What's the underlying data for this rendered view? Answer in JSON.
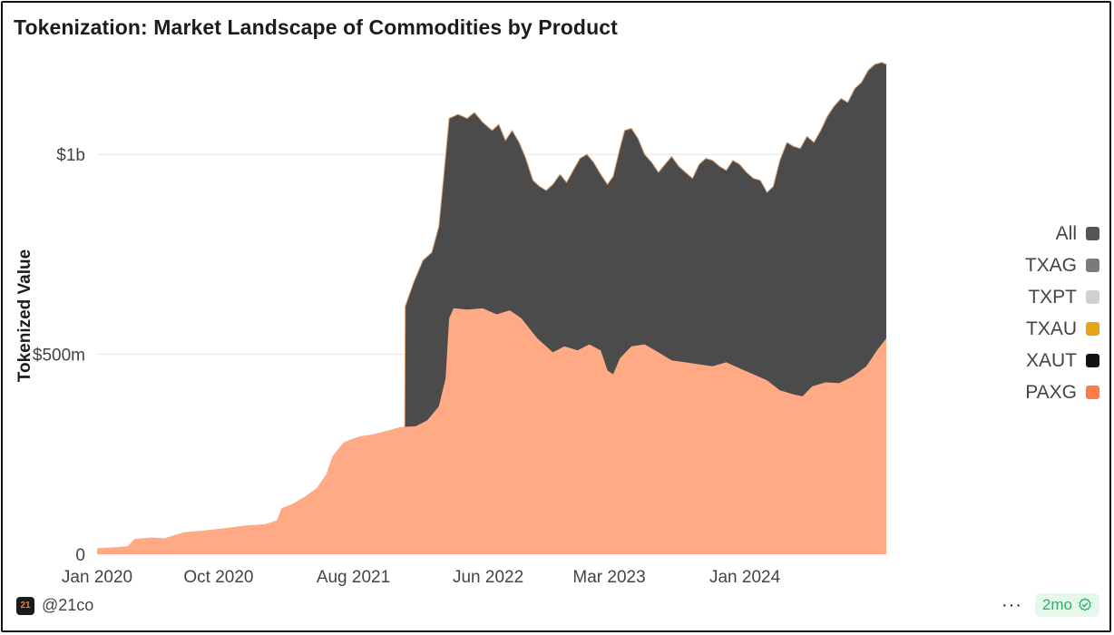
{
  "title": "Tokenization: Market Landscape of Commodities by Product",
  "footer": {
    "handle": "@21co",
    "logo_text": "21",
    "more_icon": "···",
    "age_badge": "2mo"
  },
  "colors": {
    "paxg": "#FFA985",
    "all": "#4B4B4B",
    "gridline": "#E6E6E6",
    "axis_text": "#444444"
  },
  "chart_data": {
    "type": "area",
    "ylabel": "Tokenized Value",
    "xlabel": "",
    "ylim": [
      0,
      1250
    ],
    "y_unit": "millions USD",
    "y_ticks": [
      {
        "value": 0,
        "label": "0"
      },
      {
        "value": 500,
        "label": "$500m"
      },
      {
        "value": 1000,
        "label": "$1b"
      }
    ],
    "x_ticks": [
      {
        "date": "2020-01-01",
        "label": "Jan 2020"
      },
      {
        "date": "2020-10-01",
        "label": "Oct 2020"
      },
      {
        "date": "2021-08-01",
        "label": "Aug 2021"
      },
      {
        "date": "2022-06-01",
        "label": "Jun 2022"
      },
      {
        "date": "2023-03-01",
        "label": "Mar 2023"
      },
      {
        "date": "2024-01-01",
        "label": "Jan 2024"
      }
    ],
    "x_range": [
      "2020-01-01",
      "2024-11-15"
    ],
    "grid": true,
    "legend_position": "right",
    "legend": [
      {
        "name": "All",
        "color": "#555555"
      },
      {
        "name": "TXAG",
        "color": "#7A7A7A"
      },
      {
        "name": "TXPT",
        "color": "#D0D0D0"
      },
      {
        "name": "TXAU",
        "color": "#E8A317"
      },
      {
        "name": "XAUT",
        "color": "#111111"
      },
      {
        "name": "PAXG",
        "color": "#FF7A45"
      }
    ],
    "series": [
      {
        "name": "PAXG",
        "color": "#FFA985",
        "points": [
          [
            "2020-01-01",
            15
          ],
          [
            "2020-02-15",
            18
          ],
          [
            "2020-03-10",
            20
          ],
          [
            "2020-03-25",
            38
          ],
          [
            "2020-05-01",
            42
          ],
          [
            "2020-06-01",
            40
          ],
          [
            "2020-07-15",
            55
          ],
          [
            "2020-09-01",
            60
          ],
          [
            "2020-10-15",
            65
          ],
          [
            "2020-12-01",
            72
          ],
          [
            "2021-01-15",
            75
          ],
          [
            "2021-02-10",
            85
          ],
          [
            "2021-02-20",
            115
          ],
          [
            "2021-03-15",
            125
          ],
          [
            "2021-04-15",
            145
          ],
          [
            "2021-05-10",
            165
          ],
          [
            "2021-06-01",
            200
          ],
          [
            "2021-06-15",
            245
          ],
          [
            "2021-07-10",
            280
          ],
          [
            "2021-08-15",
            295
          ],
          [
            "2021-09-15",
            300
          ],
          [
            "2021-10-20",
            310
          ],
          [
            "2021-11-15",
            318
          ],
          [
            "2021-12-20",
            320
          ],
          [
            "2022-01-15",
            335
          ],
          [
            "2022-02-10",
            370
          ],
          [
            "2022-02-25",
            440
          ],
          [
            "2022-03-05",
            590
          ],
          [
            "2022-03-15",
            615
          ],
          [
            "2022-04-15",
            612
          ],
          [
            "2022-05-20",
            615
          ],
          [
            "2022-06-20",
            600
          ],
          [
            "2022-07-20",
            610
          ],
          [
            "2022-08-15",
            590
          ],
          [
            "2022-09-20",
            540
          ],
          [
            "2022-10-25",
            505
          ],
          [
            "2022-11-20",
            520
          ],
          [
            "2022-12-20",
            510
          ],
          [
            "2023-01-15",
            525
          ],
          [
            "2023-02-10",
            510
          ],
          [
            "2023-02-25",
            460
          ],
          [
            "2023-03-10",
            450
          ],
          [
            "2023-03-25",
            490
          ],
          [
            "2023-04-20",
            520
          ],
          [
            "2023-05-20",
            525
          ],
          [
            "2023-06-20",
            505
          ],
          [
            "2023-07-20",
            485
          ],
          [
            "2023-08-20",
            480
          ],
          [
            "2023-09-20",
            475
          ],
          [
            "2023-10-20",
            470
          ],
          [
            "2023-11-20",
            480
          ],
          [
            "2023-12-20",
            465
          ],
          [
            "2024-01-20",
            450
          ],
          [
            "2024-02-20",
            435
          ],
          [
            "2024-03-20",
            410
          ],
          [
            "2024-04-20",
            400
          ],
          [
            "2024-05-10",
            395
          ],
          [
            "2024-06-01",
            420
          ],
          [
            "2024-07-01",
            430
          ],
          [
            "2024-08-01",
            428
          ],
          [
            "2024-09-01",
            445
          ],
          [
            "2024-10-01",
            470
          ],
          [
            "2024-10-25",
            510
          ],
          [
            "2024-11-15",
            540
          ]
        ]
      },
      {
        "name": "All",
        "color": "#4B4B4B",
        "points": [
          [
            "2021-11-25",
            320
          ],
          [
            "2021-11-26",
            620
          ],
          [
            "2021-12-15",
            680
          ],
          [
            "2022-01-05",
            735
          ],
          [
            "2022-01-25",
            755
          ],
          [
            "2022-02-10",
            820
          ],
          [
            "2022-02-20",
            935
          ],
          [
            "2022-03-05",
            1090
          ],
          [
            "2022-03-25",
            1100
          ],
          [
            "2022-04-15",
            1090
          ],
          [
            "2022-05-01",
            1105
          ],
          [
            "2022-05-20",
            1080
          ],
          [
            "2022-06-10",
            1060
          ],
          [
            "2022-06-25",
            1075
          ],
          [
            "2022-07-10",
            1035
          ],
          [
            "2022-07-25",
            1060
          ],
          [
            "2022-08-10",
            1030
          ],
          [
            "2022-08-25",
            990
          ],
          [
            "2022-09-10",
            935
          ],
          [
            "2022-09-25",
            920
          ],
          [
            "2022-10-10",
            910
          ],
          [
            "2022-10-25",
            925
          ],
          [
            "2022-11-10",
            950
          ],
          [
            "2022-11-25",
            930
          ],
          [
            "2022-12-10",
            960
          ],
          [
            "2022-12-25",
            990
          ],
          [
            "2023-01-10",
            1000
          ],
          [
            "2023-01-25",
            980
          ],
          [
            "2023-02-10",
            950
          ],
          [
            "2023-02-25",
            925
          ],
          [
            "2023-03-10",
            945
          ],
          [
            "2023-03-25",
            1015
          ],
          [
            "2023-04-05",
            1060
          ],
          [
            "2023-04-20",
            1065
          ],
          [
            "2023-05-05",
            1040
          ],
          [
            "2023-05-20",
            1000
          ],
          [
            "2023-06-05",
            980
          ],
          [
            "2023-06-20",
            955
          ],
          [
            "2023-07-05",
            975
          ],
          [
            "2023-07-20",
            995
          ],
          [
            "2023-08-05",
            970
          ],
          [
            "2023-08-20",
            955
          ],
          [
            "2023-09-05",
            940
          ],
          [
            "2023-09-20",
            975
          ],
          [
            "2023-10-05",
            990
          ],
          [
            "2023-10-20",
            985
          ],
          [
            "2023-11-05",
            970
          ],
          [
            "2023-11-20",
            960
          ],
          [
            "2023-12-05",
            985
          ],
          [
            "2023-12-20",
            975
          ],
          [
            "2024-01-05",
            955
          ],
          [
            "2024-01-20",
            940
          ],
          [
            "2024-02-05",
            935
          ],
          [
            "2024-02-20",
            905
          ],
          [
            "2024-03-05",
            920
          ],
          [
            "2024-03-20",
            985
          ],
          [
            "2024-04-05",
            1030
          ],
          [
            "2024-04-20",
            1020
          ],
          [
            "2024-05-05",
            1015
          ],
          [
            "2024-05-20",
            1045
          ],
          [
            "2024-06-05",
            1030
          ],
          [
            "2024-06-20",
            1060
          ],
          [
            "2024-07-05",
            1095
          ],
          [
            "2024-07-20",
            1120
          ],
          [
            "2024-08-05",
            1140
          ],
          [
            "2024-08-20",
            1130
          ],
          [
            "2024-09-05",
            1165
          ],
          [
            "2024-09-20",
            1180
          ],
          [
            "2024-10-05",
            1210
          ],
          [
            "2024-10-20",
            1225
          ],
          [
            "2024-11-05",
            1230
          ],
          [
            "2024-11-15",
            1225
          ]
        ]
      }
    ]
  }
}
